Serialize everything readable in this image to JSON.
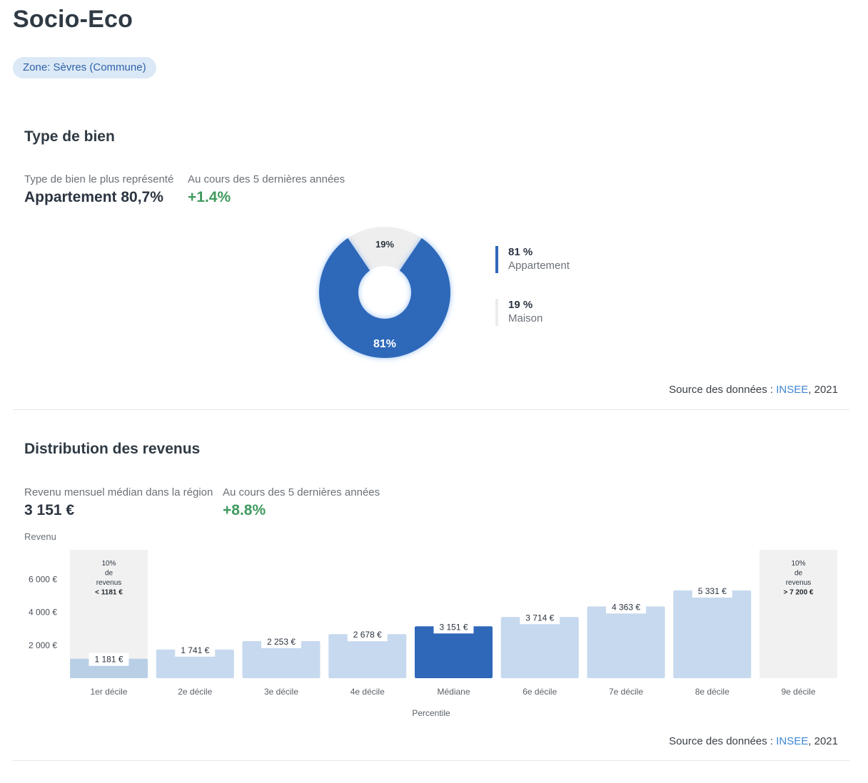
{
  "page": {
    "title": "Socio-Eco",
    "zone_chip": "Zone: Sèvres (Commune)"
  },
  "type_de_bien": {
    "title": "Type de bien",
    "kpi_label": "Type de bien le plus représenté",
    "kpi_value": "Appartement 80,7%",
    "delta_label": "Au cours des 5 dernières années",
    "delta_value": "+1.4%",
    "legend": [
      {
        "pct": "81 %",
        "label": "Appartement"
      },
      {
        "pct": "19 %",
        "label": "Maison"
      }
    ],
    "source_prefix": "Source des données : ",
    "source_link": "INSEE",
    "source_suffix": ", 2021"
  },
  "distribution": {
    "title": "Distribution des revenus",
    "kpi_label": "Revenu mensuel médian dans la région",
    "kpi_value": "3 151 €",
    "delta_label": "Au cours des 5 dernières années",
    "delta_value": "+8.8%",
    "source_prefix": "Source des données : ",
    "source_link": "INSEE",
    "source_suffix": ", 2021"
  },
  "chart_data": [
    {
      "type": "pie",
      "variant": "donut",
      "slices": [
        {
          "label": "Appartement",
          "value": 81,
          "display": "81%",
          "color": "#2f67b9"
        },
        {
          "label": "Maison",
          "value": 19,
          "display": "19%",
          "color": "#eeeeee"
        }
      ]
    },
    {
      "type": "bar",
      "ylabel": "Revenu",
      "xlabel": "Percentile",
      "ylim": [
        0,
        7800
      ],
      "yticks": [
        {
          "value": 2000,
          "label": "2 000 €"
        },
        {
          "value": 4000,
          "label": "4 000 €"
        },
        {
          "value": 6000,
          "label": "6 000 €"
        }
      ],
      "categories": [
        "1er décile",
        "2e décile",
        "3e décile",
        "4e décile",
        "Médiane",
        "6e décile",
        "7e décile",
        "8e décile",
        "9e décile"
      ],
      "values": [
        1181,
        1741,
        2253,
        2678,
        3151,
        3714,
        4363,
        5331,
        null
      ],
      "value_labels": [
        "1 181 €",
        "1 741 €",
        "2 253 €",
        "2 678 €",
        "3 151 €",
        "3 714 €",
        "4 363 €",
        "5 331 €",
        ""
      ],
      "highlight_index": 4,
      "colors": {
        "bar": "#c6d9ee",
        "highlight": "#2f67b9",
        "first": "#b9cfe6",
        "band": "#f1f1f1"
      },
      "annotations": [
        {
          "category": "1er décile",
          "lines": [
            "10%",
            "de",
            "revenus"
          ],
          "bold": "< 1181 €"
        },
        {
          "category": "9e décile",
          "lines": [
            "10%",
            "de",
            "revenus"
          ],
          "bold": "> 7 200 €"
        }
      ]
    }
  ]
}
